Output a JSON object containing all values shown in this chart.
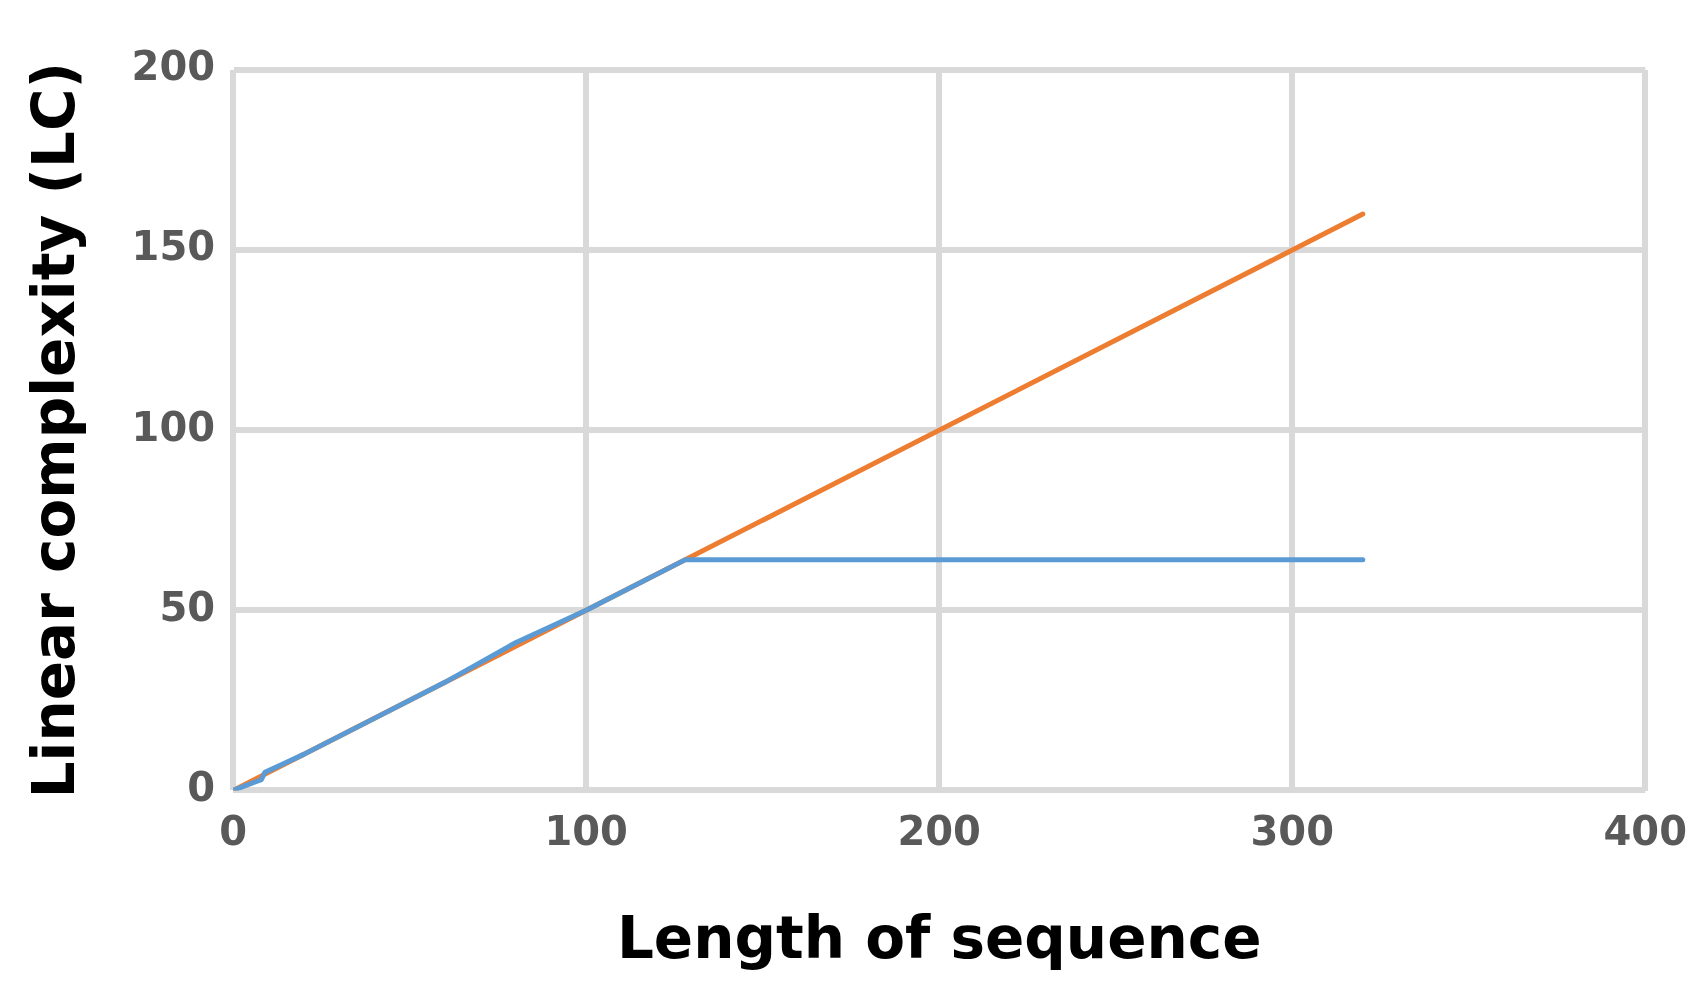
{
  "chart_data": {
    "type": "line",
    "xlabel": "Length of sequence",
    "ylabel": "Linear complexity (LC)",
    "xlim": [
      0,
      400
    ],
    "xticks": [
      0,
      100,
      200,
      300,
      400
    ],
    "ylim": [
      0,
      200
    ],
    "yticks": [
      0,
      50,
      100,
      150,
      200
    ],
    "grid": true,
    "legend": false,
    "marker": "none",
    "line_style": "solid",
    "series": [
      {
        "color": "#5b9bd5",
        "x": [
          0,
          8,
          9,
          20,
          40,
          60,
          80,
          100,
          128,
          320
        ],
        "values": [
          0,
          3,
          5,
          10,
          20,
          30,
          41,
          50,
          64,
          64
        ]
      },
      {
        "color": "#ed7d31",
        "x": [
          0,
          320
        ],
        "values": [
          0,
          160
        ]
      }
    ]
  }
}
